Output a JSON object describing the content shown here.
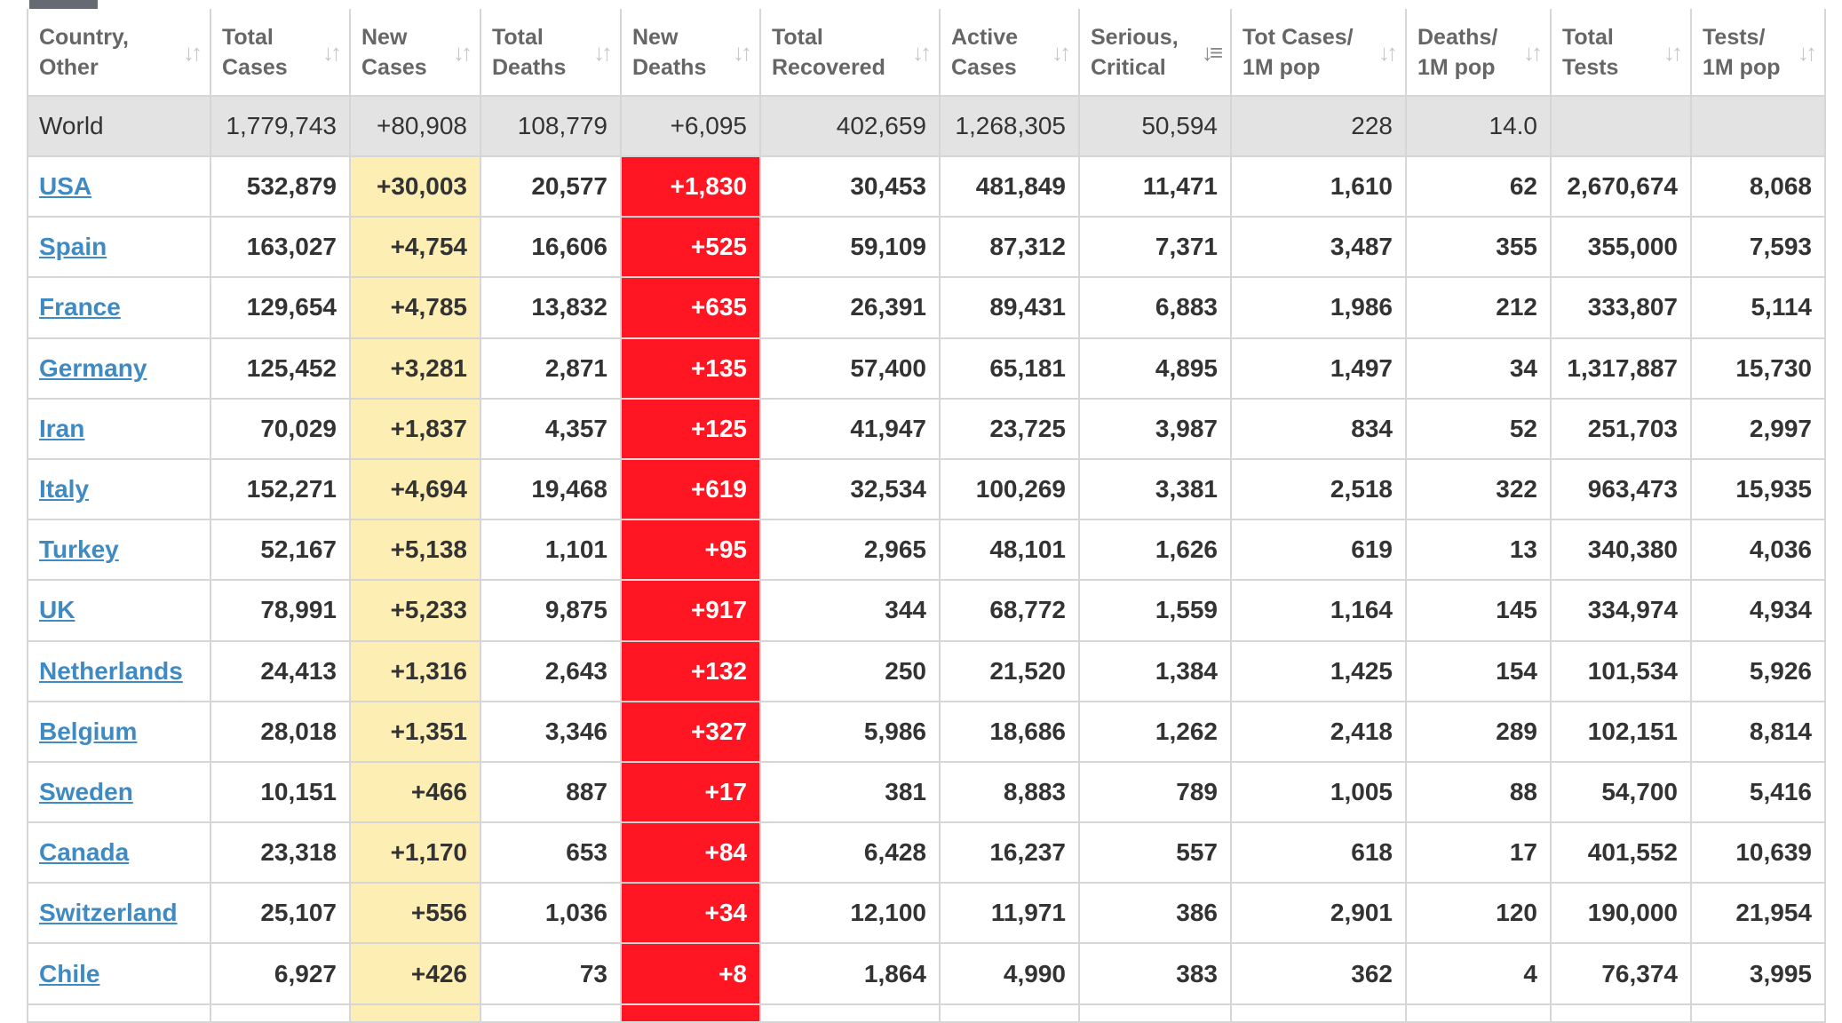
{
  "table": {
    "columns": [
      {
        "line1": "Country,",
        "line2": "Other",
        "sort_active": false
      },
      {
        "line1": "Total",
        "line2": "Cases",
        "sort_active": false
      },
      {
        "line1": "New",
        "line2": "Cases",
        "sort_active": false
      },
      {
        "line1": "Total",
        "line2": "Deaths",
        "sort_active": false
      },
      {
        "line1": "New",
        "line2": "Deaths",
        "sort_active": false
      },
      {
        "line1": "Total",
        "line2": "Recovered",
        "sort_active": false
      },
      {
        "line1": "Active",
        "line2": "Cases",
        "sort_active": false
      },
      {
        "line1": "Serious,",
        "line2": "Critical",
        "sort_active": true
      },
      {
        "line1": "Tot Cases/",
        "line2": "1M pop",
        "sort_active": false
      },
      {
        "line1": "Deaths/",
        "line2": "1M pop",
        "sort_active": false
      },
      {
        "line1": "Total",
        "line2": "Tests",
        "sort_active": false
      },
      {
        "line1": "Tests/",
        "line2": "1M pop",
        "sort_active": false
      }
    ],
    "world": [
      "World",
      "1,779,743",
      "+80,908",
      "108,779",
      "+6,095",
      "402,659",
      "1,268,305",
      "50,594",
      "228",
      "14.0",
      "",
      ""
    ],
    "rows": [
      [
        "USA",
        "532,879",
        "+30,003",
        "20,577",
        "+1,830",
        "30,453",
        "481,849",
        "11,471",
        "1,610",
        "62",
        "2,670,674",
        "8,068"
      ],
      [
        "Spain",
        "163,027",
        "+4,754",
        "16,606",
        "+525",
        "59,109",
        "87,312",
        "7,371",
        "3,487",
        "355",
        "355,000",
        "7,593"
      ],
      [
        "France",
        "129,654",
        "+4,785",
        "13,832",
        "+635",
        "26,391",
        "89,431",
        "6,883",
        "1,986",
        "212",
        "333,807",
        "5,114"
      ],
      [
        "Germany",
        "125,452",
        "+3,281",
        "2,871",
        "+135",
        "57,400",
        "65,181",
        "4,895",
        "1,497",
        "34",
        "1,317,887",
        "15,730"
      ],
      [
        "Iran",
        "70,029",
        "+1,837",
        "4,357",
        "+125",
        "41,947",
        "23,725",
        "3,987",
        "834",
        "52",
        "251,703",
        "2,997"
      ],
      [
        "Italy",
        "152,271",
        "+4,694",
        "19,468",
        "+619",
        "32,534",
        "100,269",
        "3,381",
        "2,518",
        "322",
        "963,473",
        "15,935"
      ],
      [
        "Turkey",
        "52,167",
        "+5,138",
        "1,101",
        "+95",
        "2,965",
        "48,101",
        "1,626",
        "619",
        "13",
        "340,380",
        "4,036"
      ],
      [
        "UK",
        "78,991",
        "+5,233",
        "9,875",
        "+917",
        "344",
        "68,772",
        "1,559",
        "1,164",
        "145",
        "334,974",
        "4,934"
      ],
      [
        "Netherlands",
        "24,413",
        "+1,316",
        "2,643",
        "+132",
        "250",
        "21,520",
        "1,384",
        "1,425",
        "154",
        "101,534",
        "5,926"
      ],
      [
        "Belgium",
        "28,018",
        "+1,351",
        "3,346",
        "+327",
        "5,986",
        "18,686",
        "1,262",
        "2,418",
        "289",
        "102,151",
        "8,814"
      ],
      [
        "Sweden",
        "10,151",
        "+466",
        "887",
        "+17",
        "381",
        "8,883",
        "789",
        "1,005",
        "88",
        "54,700",
        "5,416"
      ],
      [
        "Canada",
        "23,318",
        "+1,170",
        "653",
        "+84",
        "6,428",
        "16,237",
        "557",
        "618",
        "17",
        "401,552",
        "10,639"
      ],
      [
        "Switzerland",
        "25,107",
        "+556",
        "1,036",
        "+34",
        "12,100",
        "11,971",
        "386",
        "2,901",
        "120",
        "190,000",
        "21,954"
      ],
      [
        "Chile",
        "6,927",
        "+426",
        "73",
        "+8",
        "1,864",
        "4,990",
        "383",
        "362",
        "4",
        "76,374",
        "3,995"
      ]
    ]
  },
  "icons": {
    "sort": "sort-arrows-icon",
    "sort_active": "sort-descending-icon"
  },
  "colors": {
    "new_cases_bg": "#fdeeb3",
    "new_deaths_bg": "#ff1622",
    "world_row_bg": "#e3e3e3",
    "country_link": "#3f8ac2"
  }
}
